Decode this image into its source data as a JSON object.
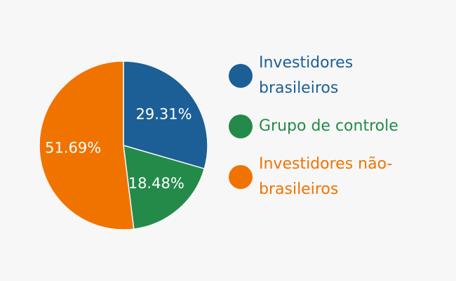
{
  "chart_data": {
    "type": "pie",
    "categories": [
      "Investidores brasileiros",
      "Grupo de controle",
      "Investidores não-brasileiros"
    ],
    "values": [
      29.31,
      18.48,
      51.69
    ],
    "value_labels": [
      "29.31%",
      "18.48%",
      "51.69%"
    ],
    "colors": [
      "#1b5f96",
      "#248a49",
      "#f07300"
    ]
  }
}
